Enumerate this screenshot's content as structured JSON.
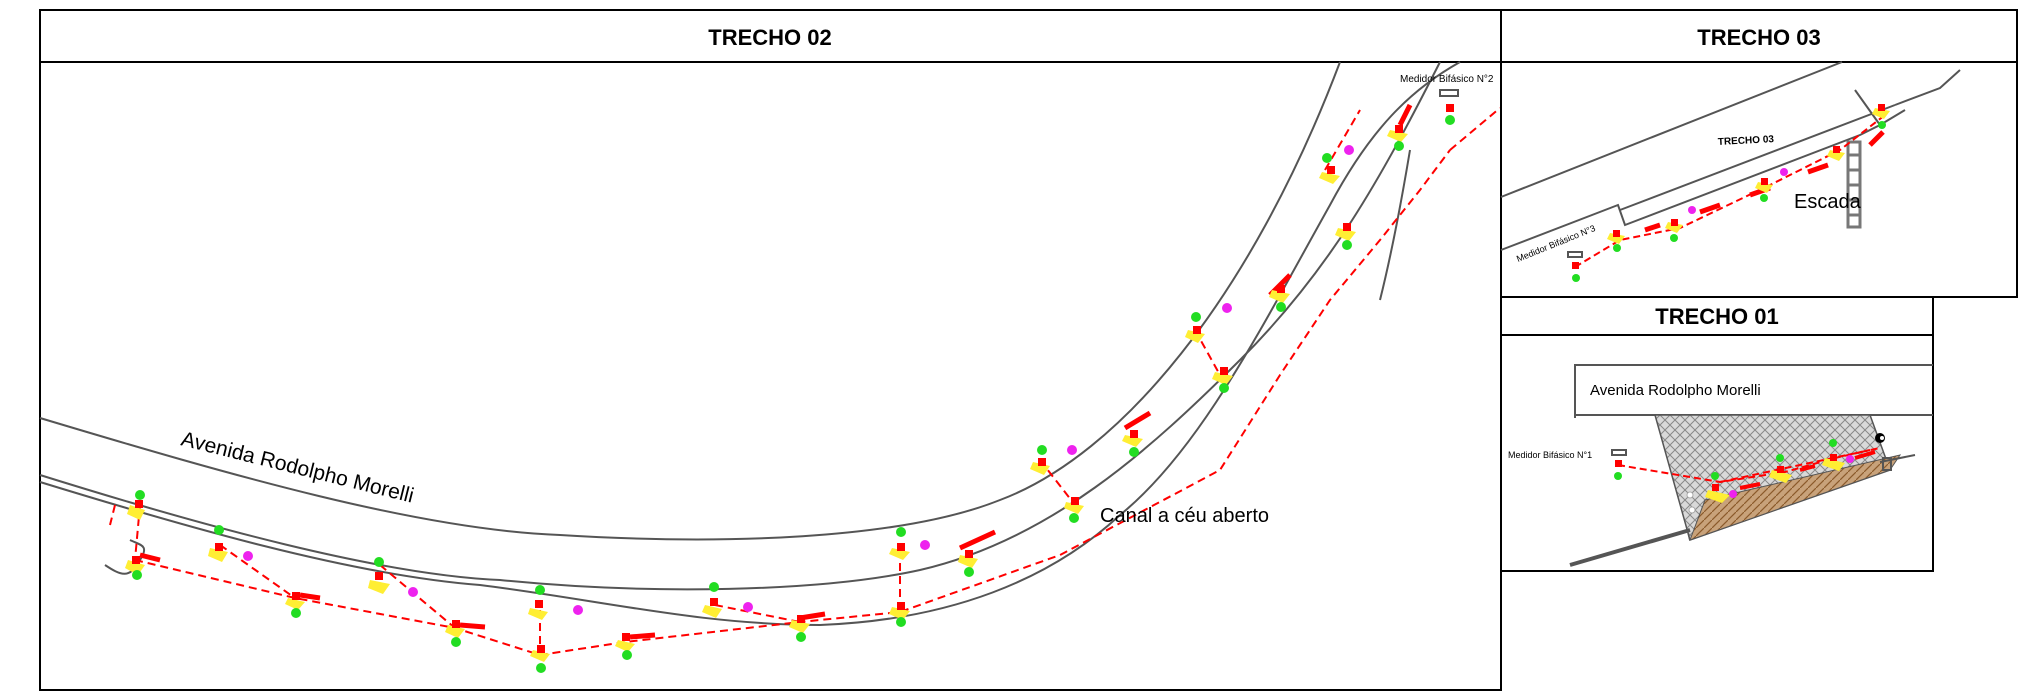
{
  "panels": {
    "trecho02": {
      "title": "TRECHO 02"
    },
    "trecho03": {
      "title": "TRECHO 03"
    },
    "trecho01": {
      "title": "TRECHO 01"
    }
  },
  "labels": {
    "avenida": "Avenida Rodolpho Morelli",
    "canal": "Canal a céu aberto",
    "medidor2": "Medidor Bifásico N°2",
    "medidor3": "Medidor Bifásico N°3",
    "medidor1": "Medidor Bifásico N°1",
    "trecho03_inner": "TRECHO 03",
    "escada": "Escada",
    "avenida01": "Avenida Rodolpho Morelli"
  },
  "colors": {
    "line": "#ff0000",
    "marker_green": "#22dd22",
    "marker_magenta": "#ee22ee",
    "marker_yellow": "#ffee33",
    "road": "#555555"
  }
}
